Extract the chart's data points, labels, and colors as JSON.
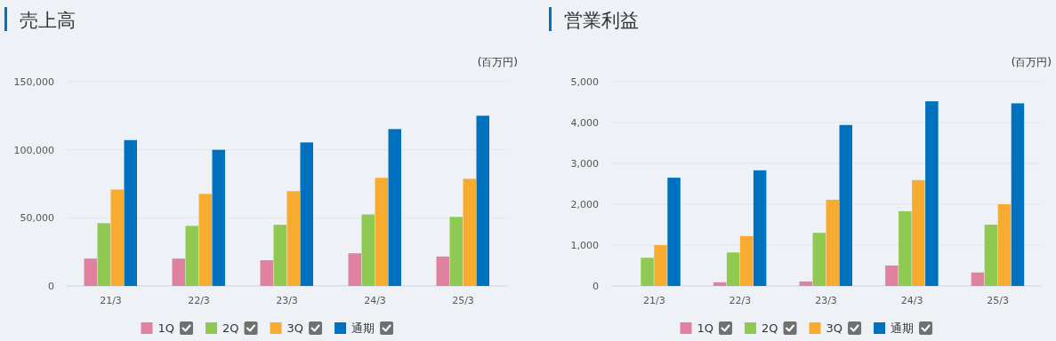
{
  "chart_data": [
    {
      "type": "bar",
      "title": "売上高",
      "ylabel": "(百万円)",
      "categories": [
        "21/3",
        "22/3",
        "23/3",
        "24/3",
        "25/3"
      ],
      "series": [
        {
          "name": "1Q",
          "color": "#e0819f",
          "values": [
            20100,
            20100,
            18900,
            24000,
            21600
          ]
        },
        {
          "name": "2Q",
          "color": "#8fc951",
          "values": [
            46100,
            44100,
            44900,
            52500,
            50700
          ]
        },
        {
          "name": "3Q",
          "color": "#f7ac2f",
          "values": [
            70800,
            67600,
            69600,
            79400,
            78700
          ]
        },
        {
          "name": "通期",
          "color": "#0071bf",
          "values": [
            107100,
            100000,
            105400,
            115200,
            125000
          ]
        }
      ],
      "ylim": [
        0,
        150000
      ],
      "yticks": [
        0,
        {
          "value": 50000,
          "label": "50,000"
        },
        {
          "value": 100000,
          "label": "100,000"
        },
        {
          "value": 150000,
          "label": "150,000"
        }
      ],
      "grid": "y",
      "legend": "bottom"
    },
    {
      "type": "bar",
      "title": "営業利益",
      "ylabel": "(百万円)",
      "categories": [
        "21/3",
        "22/3",
        "23/3",
        "24/3",
        "25/3"
      ],
      "series": [
        {
          "name": "1Q",
          "color": "#e0819f",
          "values": [
            null,
            90,
            110,
            500,
            330
          ]
        },
        {
          "name": "2Q",
          "color": "#8fc951",
          "values": [
            690,
            820,
            1300,
            1830,
            1500
          ]
        },
        {
          "name": "3Q",
          "color": "#f7ac2f",
          "values": [
            1000,
            1220,
            2110,
            2590,
            2000
          ]
        },
        {
          "name": "通期",
          "color": "#0071bf",
          "values": [
            2650,
            2830,
            3940,
            4520,
            4470
          ]
        }
      ],
      "ylim": [
        0,
        5000
      ],
      "yticks": [
        0,
        {
          "value": 1000,
          "label": "1,000"
        },
        {
          "value": 2000,
          "label": "2,000"
        },
        {
          "value": 3000,
          "label": "3,000"
        },
        {
          "value": 4000,
          "label": "4,000"
        },
        {
          "value": 5000,
          "label": "5,000"
        }
      ],
      "grid": "y",
      "legend": "bottom"
    }
  ]
}
